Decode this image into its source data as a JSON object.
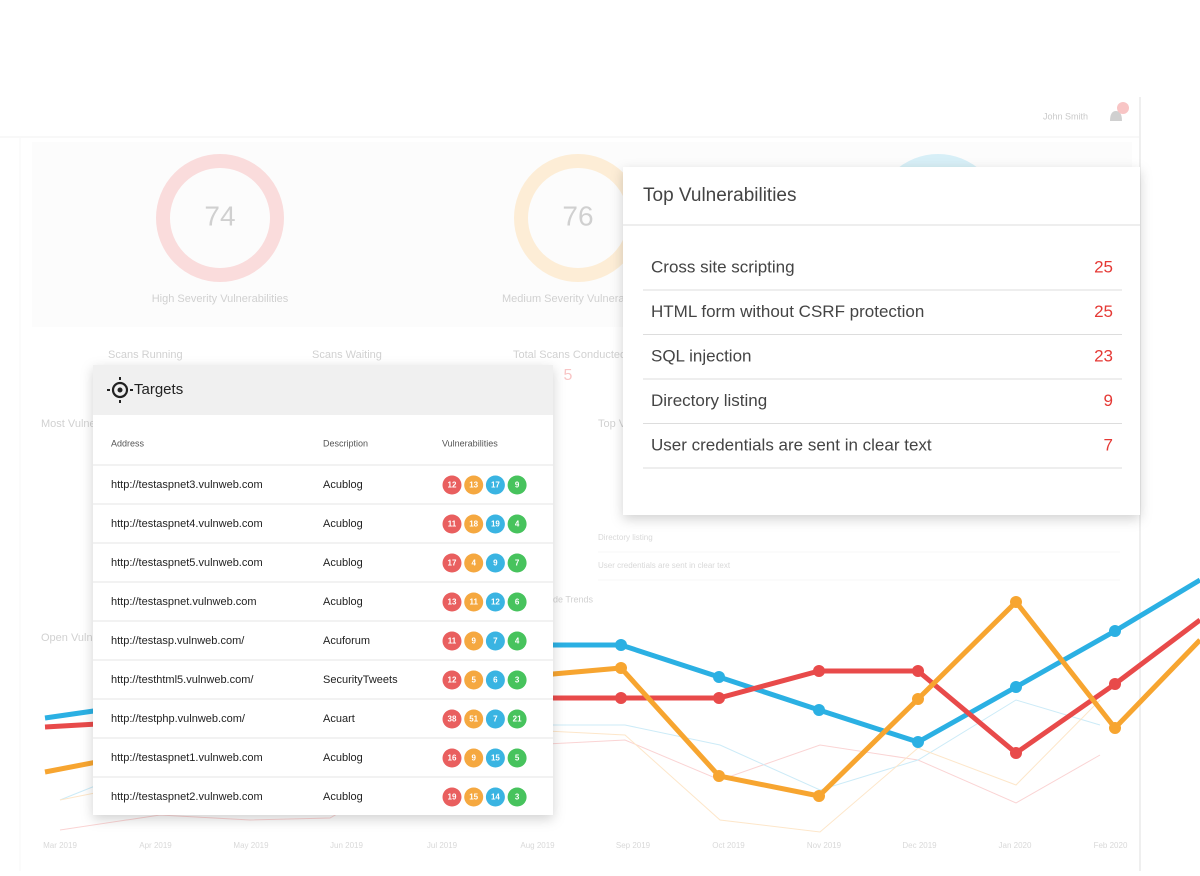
{
  "header": {
    "user": "John Smith"
  },
  "background": {
    "donuts": [
      {
        "value": "74",
        "label": "High Severity Vulnerabilities"
      },
      {
        "value": "76",
        "label": "Medium Severity Vulnera"
      }
    ],
    "scan_labels": [
      "Scans Running",
      "Scans Waiting",
      "Total Scans Conducted"
    ],
    "total_scans": "5",
    "most_vulnerable_heading": "Most Vulne",
    "top_heading": "Top V",
    "open_heading": "Open Vulne",
    "trends_heading": "de Trends",
    "faded_list": [
      "Directory listing",
      "User credentials are sent in clear text"
    ],
    "months": [
      "Mar 2019",
      "Apr 2019",
      "May 2019",
      "Jun 2019",
      "Jul 2019",
      "Aug 2019",
      "Sep 2019",
      "Oct 2019",
      "Nov 2019",
      "Dec 2019",
      "Jan 2020",
      "Feb 2020"
    ]
  },
  "targets": {
    "title": "Targets",
    "columns": [
      "Address",
      "Description",
      "Vulnerabilities"
    ],
    "rows": [
      {
        "address": "http://testaspnet3.vulnweb.com",
        "description": "Acublog",
        "counts": [
          12,
          13,
          17,
          9
        ]
      },
      {
        "address": "http://testaspnet4.vulnweb.com",
        "description": "Acublog",
        "counts": [
          11,
          18,
          19,
          4
        ]
      },
      {
        "address": "http://testaspnet5.vulnweb.com",
        "description": "Acublog",
        "counts": [
          17,
          4,
          9,
          7
        ]
      },
      {
        "address": "http://testaspnet.vulnweb.com",
        "description": "Acublog",
        "counts": [
          13,
          11,
          12,
          6
        ]
      },
      {
        "address": "http://testasp.vulnweb.com/",
        "description": "Acuforum",
        "counts": [
          11,
          9,
          7,
          4
        ]
      },
      {
        "address": "http://testhtml5.vulnweb.com/",
        "description": "SecurityTweets",
        "counts": [
          12,
          5,
          6,
          3
        ]
      },
      {
        "address": "http://testphp.vulnweb.com/",
        "description": "Acuart",
        "counts": [
          38,
          51,
          7,
          21
        ]
      },
      {
        "address": "http://testaspnet1.vulnweb.com",
        "description": "Acublog",
        "counts": [
          16,
          9,
          15,
          5
        ]
      },
      {
        "address": "http://testaspnet2.vulnweb.com",
        "description": "Acublog",
        "counts": [
          19,
          15,
          14,
          3
        ]
      }
    ]
  },
  "top_vulnerabilities": {
    "title": "Top Vulnerabilities",
    "items": [
      {
        "name": "Cross site scripting",
        "count": 25
      },
      {
        "name": "HTML form without CSRF protection",
        "count": 25
      },
      {
        "name": "SQL injection",
        "count": 23
      },
      {
        "name": "Directory listing",
        "count": 9
      },
      {
        "name": "User credentials are sent in clear text",
        "count": 7
      }
    ]
  }
}
